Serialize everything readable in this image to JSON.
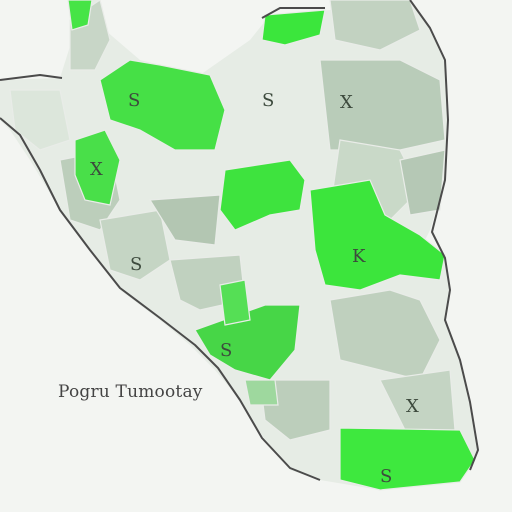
{
  "map": {
    "caption": "Pogru Tumootay",
    "labels": [
      "S",
      "S",
      "X",
      "X",
      "K",
      "S",
      "S",
      "X",
      "S"
    ],
    "colors": {
      "bright_green": "#39e83a",
      "mid_green": "#7fd47f",
      "light_green": "#cfe9cf",
      "gray_green": "#b9ccb9",
      "pale": "#e8eee7",
      "outline": "#4b4b4b"
    }
  }
}
